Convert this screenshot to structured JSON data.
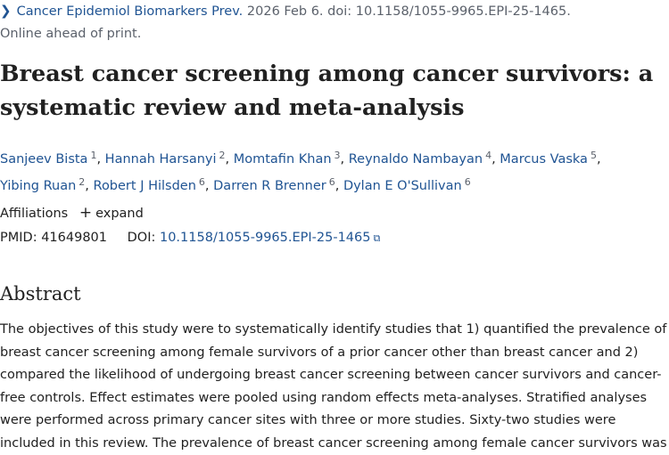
{
  "citation": {
    "journal": "Cancer Epidemiol Biomarkers Prev.",
    "rest": "2026 Feb 6. doi: 10.1158/1055-9965.EPI-25-1465.",
    "status": "Online ahead of print."
  },
  "title": "Breast cancer screening among cancer survivors: a systematic review and meta-analysis",
  "authors": [
    {
      "name": "Sanjeev Bista",
      "aff": "1"
    },
    {
      "name": "Hannah Harsanyi",
      "aff": "2"
    },
    {
      "name": "Momtafin Khan",
      "aff": "3"
    },
    {
      "name": "Reynaldo Nambayan",
      "aff": "4"
    },
    {
      "name": "Marcus Vaska",
      "aff": "5"
    },
    {
      "name": "Yibing Ruan",
      "aff": "2"
    },
    {
      "name": "Robert J Hilsden",
      "aff": "6"
    },
    {
      "name": "Darren R Brenner",
      "aff": "6"
    },
    {
      "name": "Dylan E O'Sullivan",
      "aff": "6"
    }
  ],
  "affiliations": {
    "label": "Affiliations",
    "expand": "expand"
  },
  "ids": {
    "pmid_label": "PMID:",
    "pmid": "41649801",
    "doi_label": "DOI:",
    "doi": "10.1158/1055-9965.EPI-25-1465"
  },
  "abstract": {
    "heading": "Abstract",
    "text": "The objectives of this study were to systematically identify studies that 1) quantified the prevalence of breast cancer screening among female survivors of a prior cancer other than breast cancer and 2) compared the likelihood of undergoing breast cancer screening between cancer survivors and cancer-free controls. Effect estimates were pooled using random effects meta-analyses. Stratified analyses were performed across primary cancer sites with three or more studies. Sixty-two studies were included in this review. The prevalence of breast cancer screening among female cancer survivors was"
  }
}
